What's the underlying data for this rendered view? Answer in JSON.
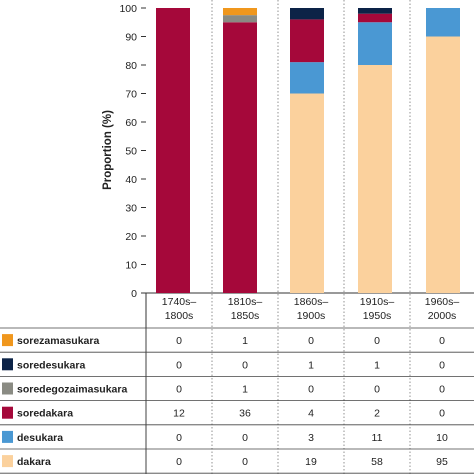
{
  "chart_data": {
    "type": "bar",
    "stacked": true,
    "ylabel": "Proportion (%)",
    "ylim": [
      0,
      100
    ],
    "yticks": [
      0,
      10,
      20,
      30,
      40,
      50,
      60,
      70,
      80,
      90,
      100
    ],
    "categories": [
      [
        "1740s–",
        "1800s"
      ],
      [
        "1810s–",
        "1850s"
      ],
      [
        "1860s–",
        "1900s"
      ],
      [
        "1910s–",
        "1950s"
      ],
      [
        "1960s–",
        "2000s"
      ]
    ],
    "series": [
      {
        "name": "dakara",
        "color": "#fbd19d",
        "counts": [
          0,
          0,
          19,
          58,
          95
        ],
        "percent": [
          0,
          0,
          70,
          80,
          90
        ]
      },
      {
        "name": "desukara",
        "color": "#4a98d3",
        "counts": [
          0,
          0,
          3,
          11,
          10
        ],
        "percent": [
          0,
          0,
          11,
          15,
          10
        ]
      },
      {
        "name": "soredakara",
        "color": "#a5083a",
        "counts": [
          12,
          36,
          4,
          2,
          0
        ],
        "percent": [
          100,
          95,
          15,
          3,
          0
        ]
      },
      {
        "name": "soredegozaimasukara",
        "color": "#8a8b83",
        "counts": [
          0,
          1,
          0,
          0,
          0
        ],
        "percent": [
          0,
          2.5,
          0,
          0,
          0
        ]
      },
      {
        "name": "soredesukara",
        "color": "#0c2347",
        "counts": [
          0,
          0,
          1,
          1,
          0
        ],
        "percent": [
          0,
          0,
          4,
          2,
          0
        ]
      },
      {
        "name": "sorezamasukara",
        "color": "#f0971d",
        "counts": [
          0,
          1,
          0,
          0,
          0
        ],
        "percent": [
          0,
          2.5,
          0,
          0,
          0
        ]
      }
    ],
    "table_row_order": [
      "sorezamasukara",
      "soredesukara",
      "soredegozaimasukara",
      "soredakara",
      "desukara",
      "dakara"
    ],
    "gridlines": false
  }
}
